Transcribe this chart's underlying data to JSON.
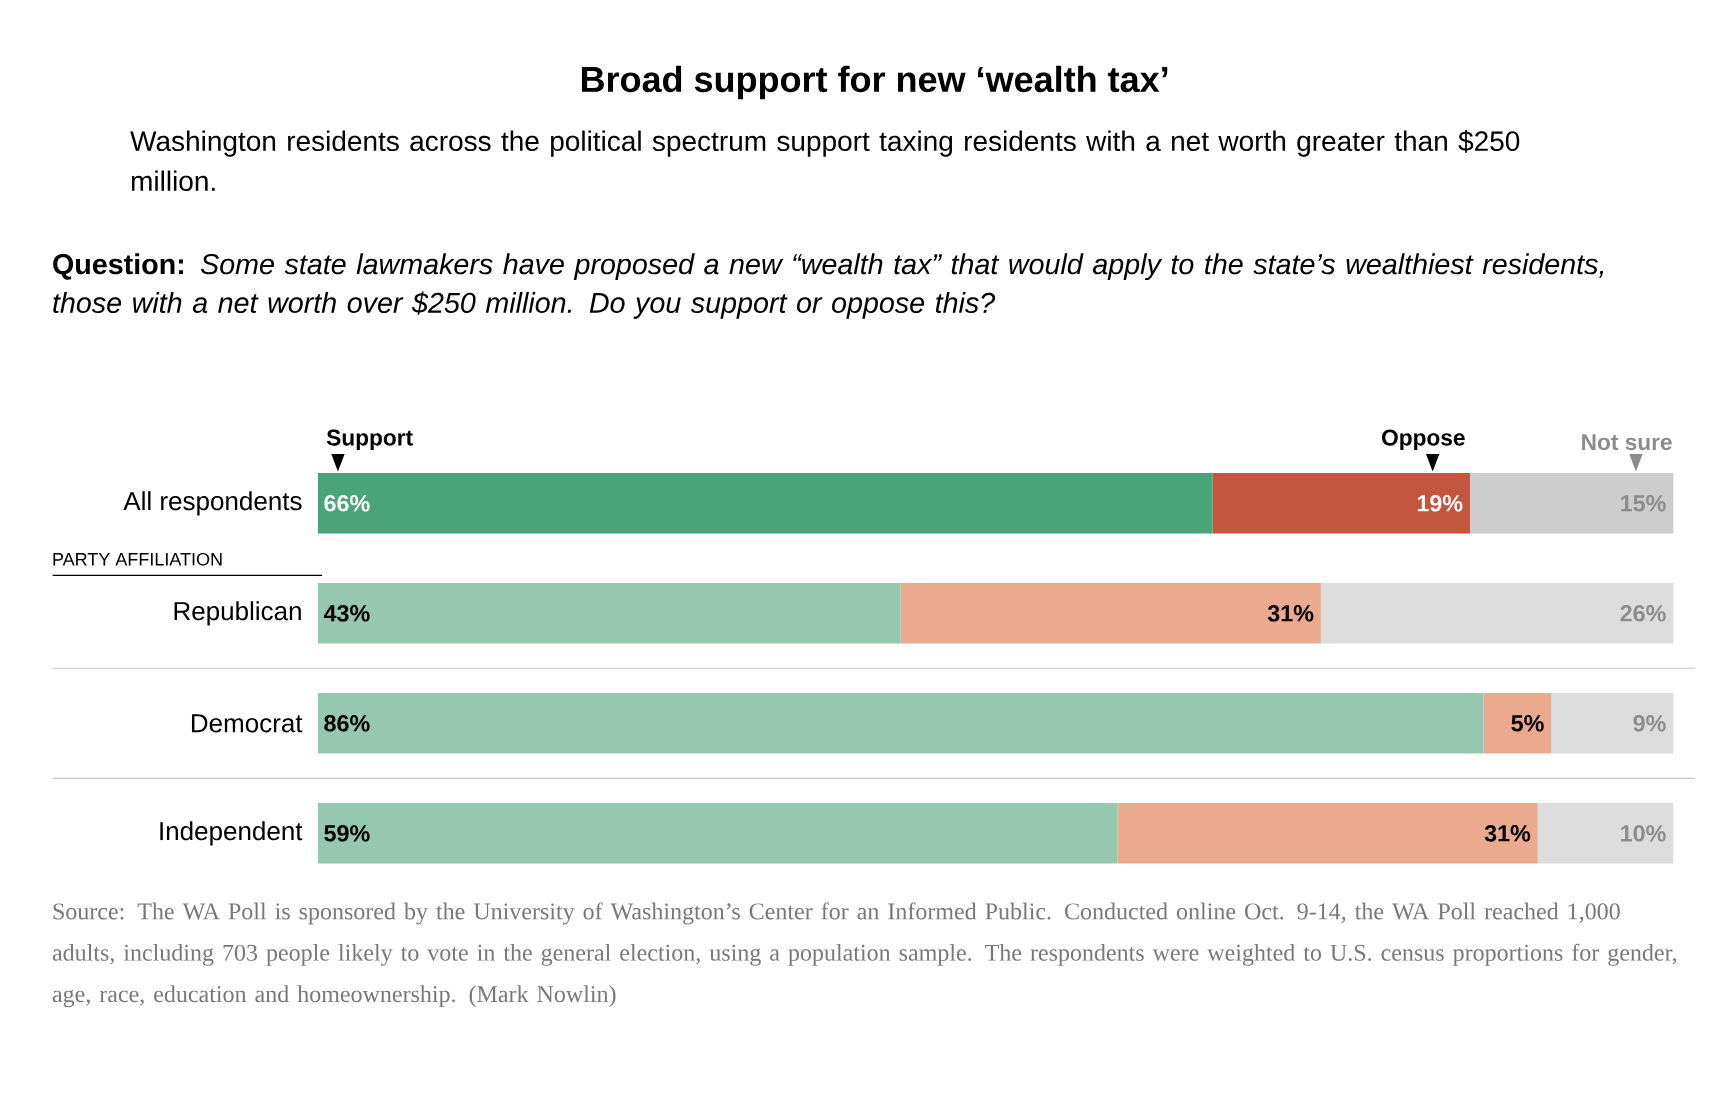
{
  "chart_data": {
    "type": "bar",
    "orientation": "horizontal",
    "stacked": true,
    "legend": "top",
    "tick_labels": "y",
    "title": "Broad support for new ‘wealth tax’",
    "subtitle": "Washington residents across the political spectrum support taxing residents with a net worth greater than $250 million.",
    "categories": [
      "All respondents",
      "Republican",
      "Democrat",
      "Independent"
    ],
    "series": [
      {
        "name": "Support",
        "colors": [
          "#49a579",
          "#96c7b0",
          "#96c7b0",
          "#96c7b0"
        ],
        "values": [
          66,
          43,
          86,
          59
        ],
        "value_labels": [
          "66%",
          "43%",
          "86%",
          "59%"
        ]
      },
      {
        "name": "Oppose",
        "colors": [
          "#c4553f",
          "#eba98e",
          "#eba98e",
          "#eba98e"
        ],
        "values": [
          19,
          31,
          5,
          31
        ],
        "value_labels": [
          "19%",
          "31%",
          "5%",
          "31%"
        ]
      },
      {
        "name": "Not sure",
        "colors": [
          "#cdcdcd",
          "#dcdcdc",
          "#dcdcdc",
          "#dcdcdc"
        ],
        "values": [
          15,
          26,
          9,
          10
        ],
        "value_labels": [
          "15%",
          "26%",
          "9%",
          "10%"
        ]
      }
    ],
    "annotations": [
      "**Question:** *Some state lawmakers have proposed a new “wealth tax” that would apply to the state’s wealthiest residents, those with a net worth over $250 million. Do you support or oppose this?*",
      "PARTY AFFILIATION",
      "Source: The WA Poll is sponsored by the University of Washington’s Center for an Informed Public. Conducted online Oct. 9-14, the WA Poll reached 1,000 adults, including 703 people likely to vote in the general election, using a population sample. The respondents were weighted to U.S. census proportions for gender, age, race, education and homeownership. (Mark Nowlin)"
    ]
  }
}
